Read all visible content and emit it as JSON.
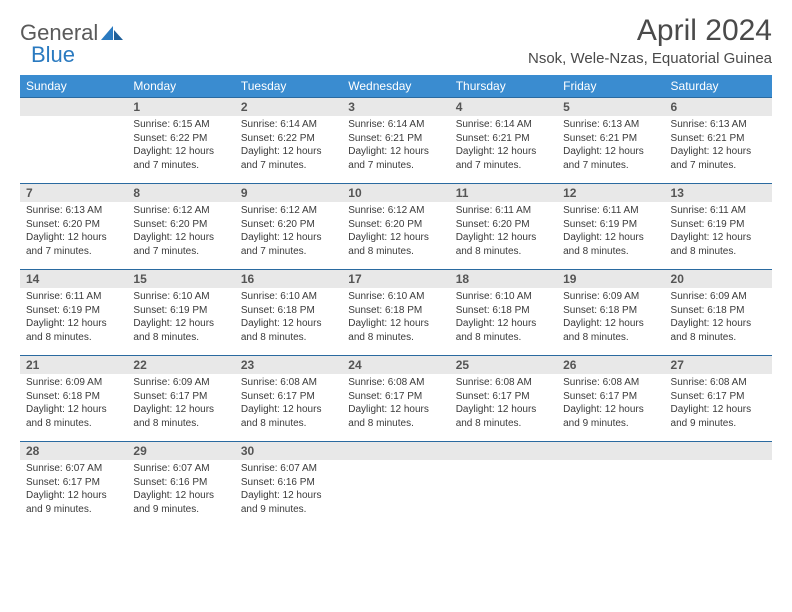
{
  "brand": {
    "word1": "General",
    "word2": "Blue"
  },
  "title": "April 2024",
  "location": "Nsok, Wele-Nzas, Equatorial Guinea",
  "colors": {
    "header_bg": "#3a8cd0",
    "header_text": "#ffffff",
    "daynum_bg": "#e8e8e8",
    "border": "#2a6aa0",
    "body_text": "#3a3a3a",
    "brand_gray": "#5a5a5a",
    "brand_blue": "#2a7ac0"
  },
  "weekdays": [
    "Sunday",
    "Monday",
    "Tuesday",
    "Wednesday",
    "Thursday",
    "Friday",
    "Saturday"
  ],
  "weeks": [
    [
      {
        "n": "",
        "sr": "",
        "ss": "",
        "dl": ""
      },
      {
        "n": "1",
        "sr": "Sunrise: 6:15 AM",
        "ss": "Sunset: 6:22 PM",
        "dl": "Daylight: 12 hours and 7 minutes."
      },
      {
        "n": "2",
        "sr": "Sunrise: 6:14 AM",
        "ss": "Sunset: 6:22 PM",
        "dl": "Daylight: 12 hours and 7 minutes."
      },
      {
        "n": "3",
        "sr": "Sunrise: 6:14 AM",
        "ss": "Sunset: 6:21 PM",
        "dl": "Daylight: 12 hours and 7 minutes."
      },
      {
        "n": "4",
        "sr": "Sunrise: 6:14 AM",
        "ss": "Sunset: 6:21 PM",
        "dl": "Daylight: 12 hours and 7 minutes."
      },
      {
        "n": "5",
        "sr": "Sunrise: 6:13 AM",
        "ss": "Sunset: 6:21 PM",
        "dl": "Daylight: 12 hours and 7 minutes."
      },
      {
        "n": "6",
        "sr": "Sunrise: 6:13 AM",
        "ss": "Sunset: 6:21 PM",
        "dl": "Daylight: 12 hours and 7 minutes."
      }
    ],
    [
      {
        "n": "7",
        "sr": "Sunrise: 6:13 AM",
        "ss": "Sunset: 6:20 PM",
        "dl": "Daylight: 12 hours and 7 minutes."
      },
      {
        "n": "8",
        "sr": "Sunrise: 6:12 AM",
        "ss": "Sunset: 6:20 PM",
        "dl": "Daylight: 12 hours and 7 minutes."
      },
      {
        "n": "9",
        "sr": "Sunrise: 6:12 AM",
        "ss": "Sunset: 6:20 PM",
        "dl": "Daylight: 12 hours and 7 minutes."
      },
      {
        "n": "10",
        "sr": "Sunrise: 6:12 AM",
        "ss": "Sunset: 6:20 PM",
        "dl": "Daylight: 12 hours and 8 minutes."
      },
      {
        "n": "11",
        "sr": "Sunrise: 6:11 AM",
        "ss": "Sunset: 6:20 PM",
        "dl": "Daylight: 12 hours and 8 minutes."
      },
      {
        "n": "12",
        "sr": "Sunrise: 6:11 AM",
        "ss": "Sunset: 6:19 PM",
        "dl": "Daylight: 12 hours and 8 minutes."
      },
      {
        "n": "13",
        "sr": "Sunrise: 6:11 AM",
        "ss": "Sunset: 6:19 PM",
        "dl": "Daylight: 12 hours and 8 minutes."
      }
    ],
    [
      {
        "n": "14",
        "sr": "Sunrise: 6:11 AM",
        "ss": "Sunset: 6:19 PM",
        "dl": "Daylight: 12 hours and 8 minutes."
      },
      {
        "n": "15",
        "sr": "Sunrise: 6:10 AM",
        "ss": "Sunset: 6:19 PM",
        "dl": "Daylight: 12 hours and 8 minutes."
      },
      {
        "n": "16",
        "sr": "Sunrise: 6:10 AM",
        "ss": "Sunset: 6:18 PM",
        "dl": "Daylight: 12 hours and 8 minutes."
      },
      {
        "n": "17",
        "sr": "Sunrise: 6:10 AM",
        "ss": "Sunset: 6:18 PM",
        "dl": "Daylight: 12 hours and 8 minutes."
      },
      {
        "n": "18",
        "sr": "Sunrise: 6:10 AM",
        "ss": "Sunset: 6:18 PM",
        "dl": "Daylight: 12 hours and 8 minutes."
      },
      {
        "n": "19",
        "sr": "Sunrise: 6:09 AM",
        "ss": "Sunset: 6:18 PM",
        "dl": "Daylight: 12 hours and 8 minutes."
      },
      {
        "n": "20",
        "sr": "Sunrise: 6:09 AM",
        "ss": "Sunset: 6:18 PM",
        "dl": "Daylight: 12 hours and 8 minutes."
      }
    ],
    [
      {
        "n": "21",
        "sr": "Sunrise: 6:09 AM",
        "ss": "Sunset: 6:18 PM",
        "dl": "Daylight: 12 hours and 8 minutes."
      },
      {
        "n": "22",
        "sr": "Sunrise: 6:09 AM",
        "ss": "Sunset: 6:17 PM",
        "dl": "Daylight: 12 hours and 8 minutes."
      },
      {
        "n": "23",
        "sr": "Sunrise: 6:08 AM",
        "ss": "Sunset: 6:17 PM",
        "dl": "Daylight: 12 hours and 8 minutes."
      },
      {
        "n": "24",
        "sr": "Sunrise: 6:08 AM",
        "ss": "Sunset: 6:17 PM",
        "dl": "Daylight: 12 hours and 8 minutes."
      },
      {
        "n": "25",
        "sr": "Sunrise: 6:08 AM",
        "ss": "Sunset: 6:17 PM",
        "dl": "Daylight: 12 hours and 8 minutes."
      },
      {
        "n": "26",
        "sr": "Sunrise: 6:08 AM",
        "ss": "Sunset: 6:17 PM",
        "dl": "Daylight: 12 hours and 9 minutes."
      },
      {
        "n": "27",
        "sr": "Sunrise: 6:08 AM",
        "ss": "Sunset: 6:17 PM",
        "dl": "Daylight: 12 hours and 9 minutes."
      }
    ],
    [
      {
        "n": "28",
        "sr": "Sunrise: 6:07 AM",
        "ss": "Sunset: 6:17 PM",
        "dl": "Daylight: 12 hours and 9 minutes."
      },
      {
        "n": "29",
        "sr": "Sunrise: 6:07 AM",
        "ss": "Sunset: 6:16 PM",
        "dl": "Daylight: 12 hours and 9 minutes."
      },
      {
        "n": "30",
        "sr": "Sunrise: 6:07 AM",
        "ss": "Sunset: 6:16 PM",
        "dl": "Daylight: 12 hours and 9 minutes."
      },
      {
        "n": "",
        "sr": "",
        "ss": "",
        "dl": ""
      },
      {
        "n": "",
        "sr": "",
        "ss": "",
        "dl": ""
      },
      {
        "n": "",
        "sr": "",
        "ss": "",
        "dl": ""
      },
      {
        "n": "",
        "sr": "",
        "ss": "",
        "dl": ""
      }
    ]
  ]
}
